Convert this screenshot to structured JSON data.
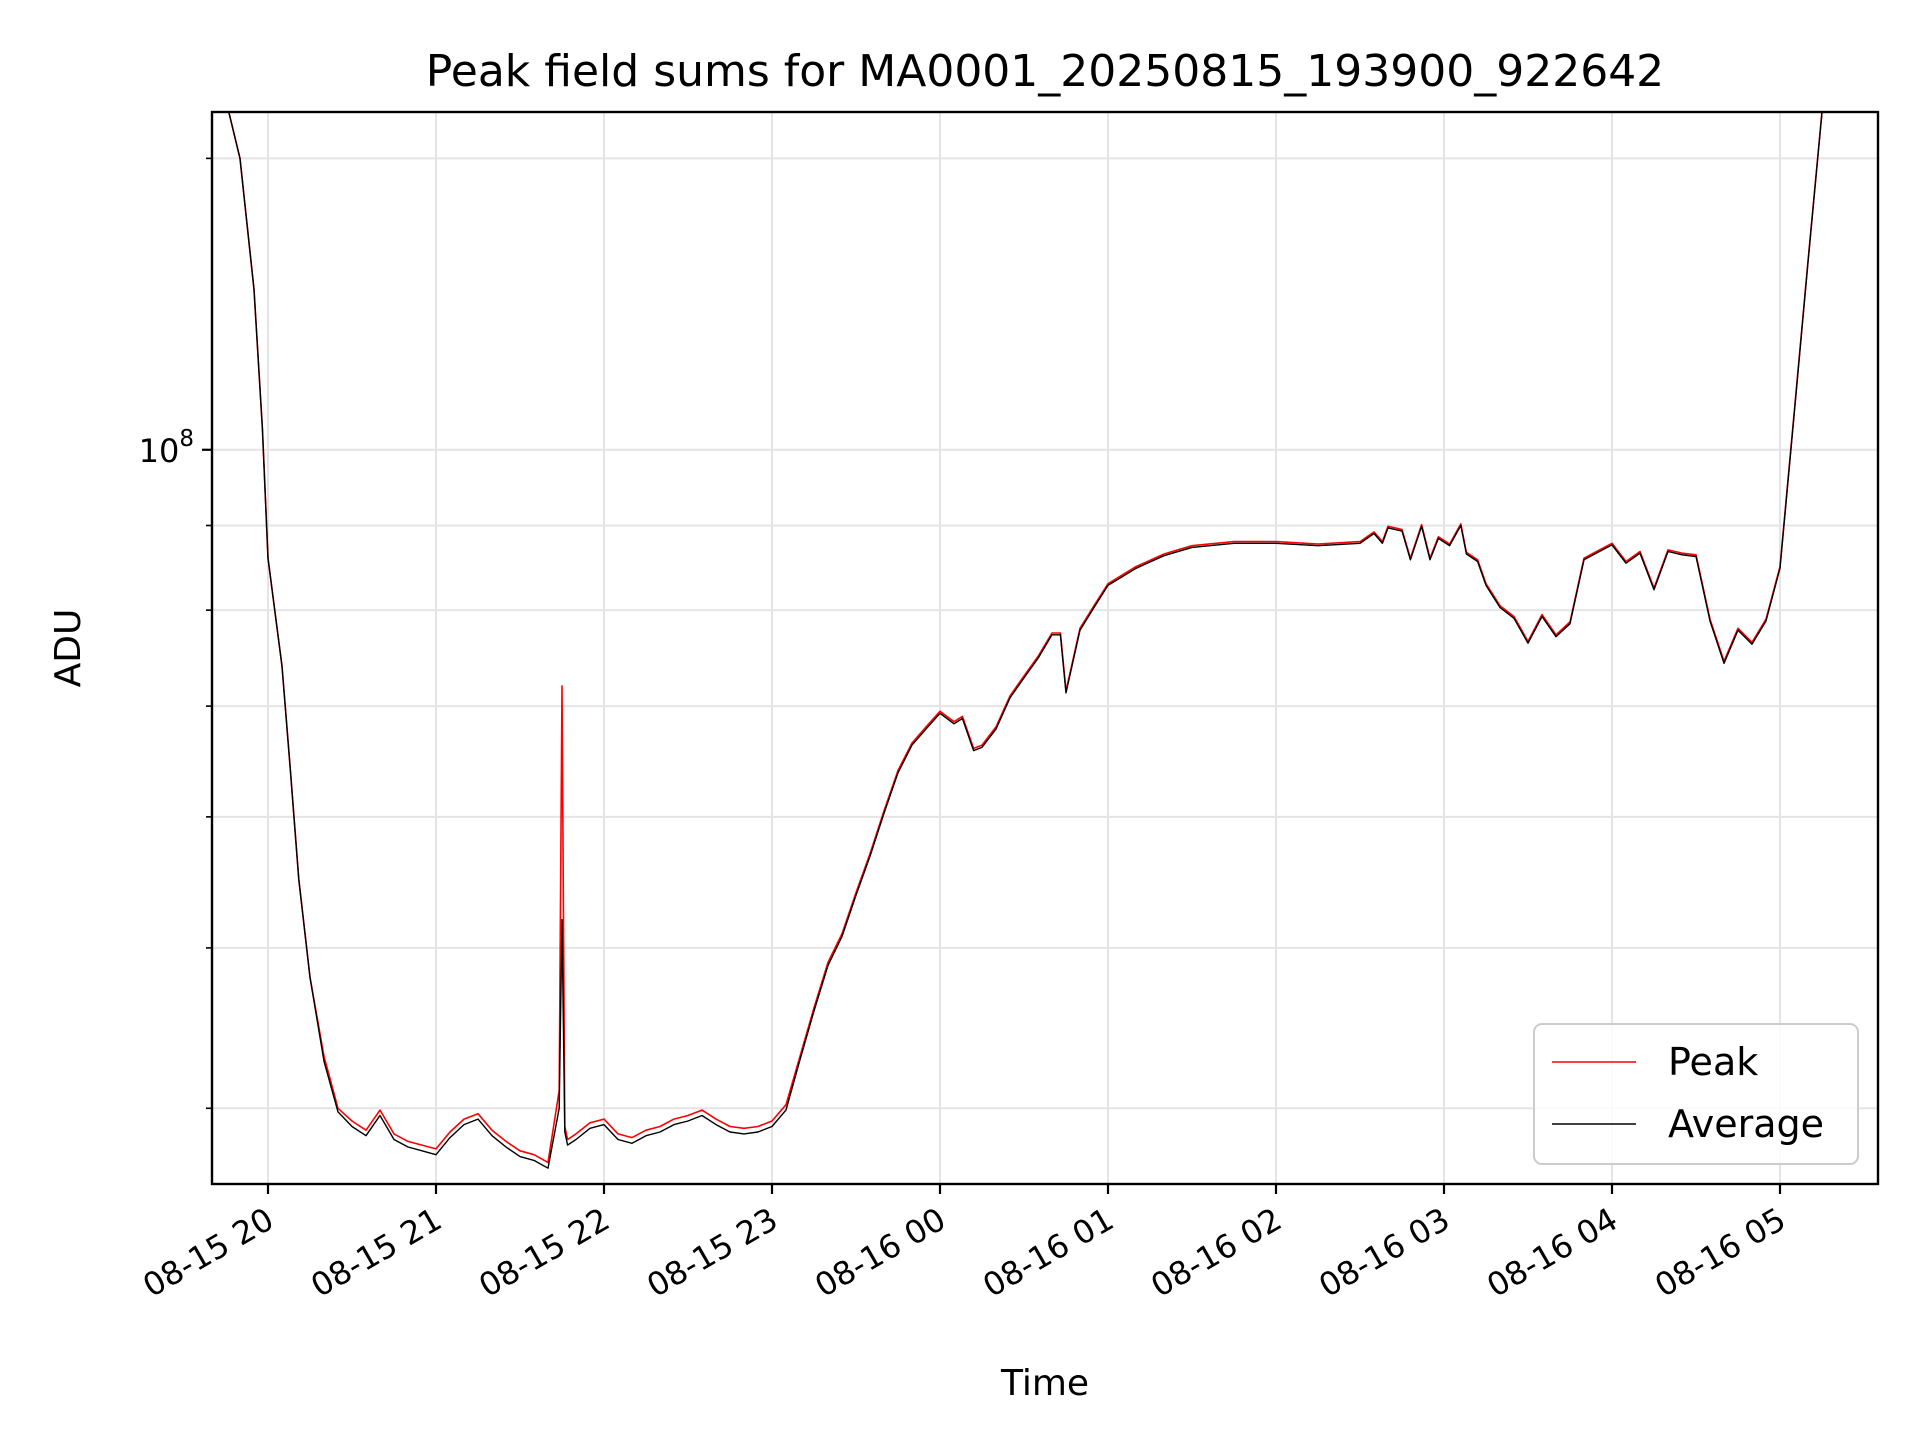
{
  "chart_data": {
    "type": "line",
    "title": "Peak field sums for MA0001_20250815_193900_922642",
    "xlabel": "Time",
    "ylabel": "ADU",
    "yscale": "log",
    "grid": true,
    "legend_position": "lower-right",
    "xlim": [
      "2025-08-15 19:40",
      "2025-08-16 05:35"
    ],
    "ylim": [
      36000000,
      160000000
    ],
    "x_ticks": [
      "08-15 20",
      "08-15 21",
      "08-15 22",
      "08-15 23",
      "08-16 00",
      "08-16 01",
      "08-16 02",
      "08-16 03",
      "08-16 04",
      "08-16 05"
    ],
    "x_tick_times": [
      "2025-08-15 20:00",
      "2025-08-15 21:00",
      "2025-08-15 22:00",
      "2025-08-15 23:00",
      "2025-08-16 00:00",
      "2025-08-16 01:00",
      "2025-08-16 02:00",
      "2025-08-16 03:00",
      "2025-08-16 04:00",
      "2025-08-16 05:00"
    ],
    "y_major_ticks": [
      {
        "value": 100000000,
        "label_base": "10",
        "label_exp": "8"
      }
    ],
    "y_minor_ticks": [
      40000000,
      50000000,
      60000000,
      70000000,
      80000000,
      90000000,
      150000000
    ],
    "series": [
      {
        "name": "Peak",
        "color": "#ff0000",
        "x": [
          "2025-08-15 19:46",
          "2025-08-15 19:50",
          "2025-08-15 19:55",
          "2025-08-15 19:58",
          "2025-08-15 20:00",
          "2025-08-15 20:05",
          "2025-08-15 20:08",
          "2025-08-15 20:11",
          "2025-08-15 20:15",
          "2025-08-15 20:20",
          "2025-08-15 20:25",
          "2025-08-15 20:30",
          "2025-08-15 20:35",
          "2025-08-15 20:40",
          "2025-08-15 20:45",
          "2025-08-15 20:50",
          "2025-08-15 20:55",
          "2025-08-15 21:00",
          "2025-08-15 21:05",
          "2025-08-15 21:10",
          "2025-08-15 21:15",
          "2025-08-15 21:20",
          "2025-08-15 21:25",
          "2025-08-15 21:30",
          "2025-08-15 21:35",
          "2025-08-15 21:40",
          "2025-08-15 21:44",
          "2025-08-15 21:45",
          "2025-08-15 21:46",
          "2025-08-15 21:47",
          "2025-08-15 21:50",
          "2025-08-15 21:55",
          "2025-08-15 22:00",
          "2025-08-15 22:05",
          "2025-08-15 22:10",
          "2025-08-15 22:15",
          "2025-08-15 22:20",
          "2025-08-15 22:25",
          "2025-08-15 22:30",
          "2025-08-15 22:35",
          "2025-08-15 22:40",
          "2025-08-15 22:45",
          "2025-08-15 22:50",
          "2025-08-15 22:55",
          "2025-08-15 23:00",
          "2025-08-15 23:05",
          "2025-08-15 23:10",
          "2025-08-15 23:15",
          "2025-08-15 23:20",
          "2025-08-15 23:25",
          "2025-08-15 23:30",
          "2025-08-15 23:35",
          "2025-08-15 23:40",
          "2025-08-15 23:45",
          "2025-08-15 23:50",
          "2025-08-15 23:55",
          "2025-08-16 00:00",
          "2025-08-16 00:05",
          "2025-08-16 00:08",
          "2025-08-16 00:12",
          "2025-08-16 00:15",
          "2025-08-16 00:20",
          "2025-08-16 00:25",
          "2025-08-16 00:30",
          "2025-08-16 00:35",
          "2025-08-16 00:40",
          "2025-08-16 00:43",
          "2025-08-16 00:45",
          "2025-08-16 00:50",
          "2025-08-16 00:55",
          "2025-08-16 01:00",
          "2025-08-16 01:10",
          "2025-08-16 01:20",
          "2025-08-16 01:30",
          "2025-08-16 01:45",
          "2025-08-16 02:00",
          "2025-08-16 02:15",
          "2025-08-16 02:30",
          "2025-08-16 02:35",
          "2025-08-16 02:38",
          "2025-08-16 02:40",
          "2025-08-16 02:45",
          "2025-08-16 02:48",
          "2025-08-16 02:52",
          "2025-08-16 02:55",
          "2025-08-16 02:58",
          "2025-08-16 03:02",
          "2025-08-16 03:06",
          "2025-08-16 03:08",
          "2025-08-16 03:12",
          "2025-08-16 03:15",
          "2025-08-16 03:20",
          "2025-08-16 03:25",
          "2025-08-16 03:30",
          "2025-08-16 03:35",
          "2025-08-16 03:40",
          "2025-08-16 03:45",
          "2025-08-16 03:50",
          "2025-08-16 03:55",
          "2025-08-16 04:00",
          "2025-08-16 04:05",
          "2025-08-16 04:10",
          "2025-08-16 04:15",
          "2025-08-16 04:20",
          "2025-08-16 04:25",
          "2025-08-16 04:30",
          "2025-08-16 04:35",
          "2025-08-16 04:40",
          "2025-08-16 04:45",
          "2025-08-16 04:50",
          "2025-08-16 04:55",
          "2025-08-16 05:00",
          "2025-08-16 05:05",
          "2025-08-16 05:10",
          "2025-08-16 05:15"
        ],
        "y": [
          160000000,
          150000000,
          125000000,
          103000000,
          86000000,
          74000000,
          64000000,
          55000000,
          48000000,
          43000000,
          40000000,
          39300000,
          38800000,
          39900000,
          38600000,
          38200000,
          38000000,
          37800000,
          38700000,
          39400000,
          39700000,
          38800000,
          38200000,
          37700000,
          37500000,
          37100000,
          41000000,
          72000000,
          39000000,
          38300000,
          38600000,
          39200000,
          39400000,
          38600000,
          38400000,
          38800000,
          39000000,
          39400000,
          39600000,
          39900000,
          39400000,
          39000000,
          38900000,
          39000000,
          39300000,
          40200000,
          43000000,
          46000000,
          49000000,
          51000000,
          54000000,
          57000000,
          60500000,
          64000000,
          66500000,
          68000000,
          69500000,
          68500000,
          69000000,
          66000000,
          66300000,
          68000000,
          71000000,
          73000000,
          75000000,
          77500000,
          77500000,
          71500000,
          78000000,
          80500000,
          83000000,
          85000000,
          86500000,
          87500000,
          88000000,
          88000000,
          87700000,
          88000000,
          89200000,
          88000000,
          89900000,
          89500000,
          86000000,
          90100000,
          86000000,
          88600000,
          87700000,
          90200000,
          86700000,
          85800000,
          83000000,
          80500000,
          79300000,
          76600000,
          79500000,
          77300000,
          78700000,
          86000000,
          86900000,
          87800000,
          85600000,
          86800000,
          82500000,
          87000000,
          86600000,
          86400000,
          79000000,
          74500000,
          78000000,
          76500000,
          79000000,
          85000000,
          105000000,
          130000000,
          160000000
        ]
      },
      {
        "name": "Average",
        "color": "#000000",
        "x": [
          "2025-08-15 19:46",
          "2025-08-15 19:50",
          "2025-08-15 19:55",
          "2025-08-15 19:58",
          "2025-08-15 20:00",
          "2025-08-15 20:05",
          "2025-08-15 20:08",
          "2025-08-15 20:11",
          "2025-08-15 20:15",
          "2025-08-15 20:20",
          "2025-08-15 20:25",
          "2025-08-15 20:30",
          "2025-08-15 20:35",
          "2025-08-15 20:40",
          "2025-08-15 20:45",
          "2025-08-15 20:50",
          "2025-08-15 20:55",
          "2025-08-15 21:00",
          "2025-08-15 21:05",
          "2025-08-15 21:10",
          "2025-08-15 21:15",
          "2025-08-15 21:20",
          "2025-08-15 21:25",
          "2025-08-15 21:30",
          "2025-08-15 21:35",
          "2025-08-15 21:40",
          "2025-08-15 21:44",
          "2025-08-15 21:45",
          "2025-08-15 21:46",
          "2025-08-15 21:47",
          "2025-08-15 21:50",
          "2025-08-15 21:55",
          "2025-08-15 22:00",
          "2025-08-15 22:05",
          "2025-08-15 22:10",
          "2025-08-15 22:15",
          "2025-08-15 22:20",
          "2025-08-15 22:25",
          "2025-08-15 22:30",
          "2025-08-15 22:35",
          "2025-08-15 22:40",
          "2025-08-15 22:45",
          "2025-08-15 22:50",
          "2025-08-15 22:55",
          "2025-08-15 23:00",
          "2025-08-15 23:05",
          "2025-08-15 23:10",
          "2025-08-15 23:15",
          "2025-08-15 23:20",
          "2025-08-15 23:25",
          "2025-08-15 23:30",
          "2025-08-15 23:35",
          "2025-08-15 23:40",
          "2025-08-15 23:45",
          "2025-08-15 23:50",
          "2025-08-15 23:55",
          "2025-08-16 00:00",
          "2025-08-16 00:05",
          "2025-08-16 00:08",
          "2025-08-16 00:12",
          "2025-08-16 00:15",
          "2025-08-16 00:20",
          "2025-08-16 00:25",
          "2025-08-16 00:30",
          "2025-08-16 00:35",
          "2025-08-16 00:40",
          "2025-08-16 00:43",
          "2025-08-16 00:45",
          "2025-08-16 00:50",
          "2025-08-16 00:55",
          "2025-08-16 01:00",
          "2025-08-16 01:10",
          "2025-08-16 01:20",
          "2025-08-16 01:30",
          "2025-08-16 01:45",
          "2025-08-16 02:00",
          "2025-08-16 02:15",
          "2025-08-16 02:30",
          "2025-08-16 02:35",
          "2025-08-16 02:38",
          "2025-08-16 02:40",
          "2025-08-16 02:45",
          "2025-08-16 02:48",
          "2025-08-16 02:52",
          "2025-08-16 02:55",
          "2025-08-16 02:58",
          "2025-08-16 03:02",
          "2025-08-16 03:06",
          "2025-08-16 03:08",
          "2025-08-16 03:12",
          "2025-08-16 03:15",
          "2025-08-16 03:20",
          "2025-08-16 03:25",
          "2025-08-16 03:30",
          "2025-08-16 03:35",
          "2025-08-16 03:40",
          "2025-08-16 03:45",
          "2025-08-16 03:50",
          "2025-08-16 03:55",
          "2025-08-16 04:00",
          "2025-08-16 04:05",
          "2025-08-16 04:10",
          "2025-08-16 04:15",
          "2025-08-16 04:20",
          "2025-08-16 04:25",
          "2025-08-16 04:30",
          "2025-08-16 04:35",
          "2025-08-16 04:40",
          "2025-08-16 04:45",
          "2025-08-16 04:50",
          "2025-08-16 04:55",
          "2025-08-16 05:00",
          "2025-08-16 05:05",
          "2025-08-16 05:10",
          "2025-08-16 05:15"
        ],
        "y": [
          160000000,
          150000000,
          125000000,
          103000000,
          86000000,
          74000000,
          64000000,
          55000000,
          48000000,
          42700000,
          39800000,
          39000000,
          38500000,
          39600000,
          38300000,
          37900000,
          37700000,
          37500000,
          38400000,
          39100000,
          39400000,
          38500000,
          37900000,
          37400000,
          37200000,
          36800000,
          40000000,
          52000000,
          38700000,
          38000000,
          38300000,
          38900000,
          39100000,
          38300000,
          38100000,
          38500000,
          38700000,
          39100000,
          39300000,
          39600000,
          39100000,
          38700000,
          38600000,
          38700000,
          39000000,
          39900000,
          42800000,
          45800000,
          48800000,
          50800000,
          53800000,
          56800000,
          60300000,
          63800000,
          66300000,
          67800000,
          69300000,
          68300000,
          68800000,
          65800000,
          66100000,
          67800000,
          70800000,
          72800000,
          74800000,
          77300000,
          77300000,
          71300000,
          77800000,
          80300000,
          82800000,
          84800000,
          86300000,
          87300000,
          87800000,
          87800000,
          87500000,
          87800000,
          89000000,
          87800000,
          89700000,
          89300000,
          85800000,
          89900000,
          85800000,
          88400000,
          87500000,
          90000000,
          86500000,
          85600000,
          82800000,
          80300000,
          79100000,
          76400000,
          79300000,
          77100000,
          78500000,
          85800000,
          86700000,
          87600000,
          85400000,
          86600000,
          82300000,
          86800000,
          86400000,
          86200000,
          78800000,
          74300000,
          77800000,
          76300000,
          78800000,
          84800000,
          104800000,
          129800000,
          160000000
        ]
      }
    ]
  }
}
